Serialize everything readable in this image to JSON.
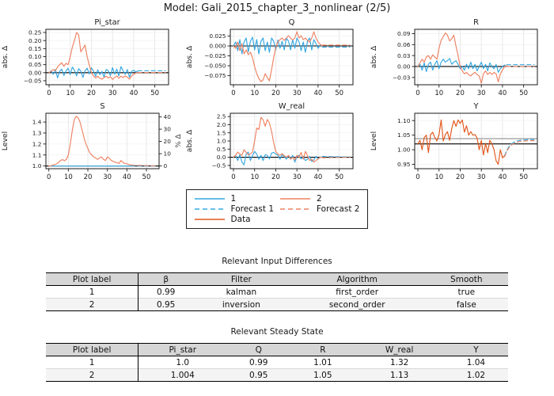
{
  "title": "Model: Gali_2015_chapter_3_nonlinear  (2/5)",
  "colors": {
    "series1": "#35a7e0",
    "series2": "#ee8262",
    "data": "#e2571c",
    "grid": "#e2e2e2",
    "grid_h": "#efefef",
    "spine": "#1a1a1a",
    "steady_black": "#000000",
    "steady_gray": "#8f8f8f"
  },
  "legend": {
    "items": [
      {
        "label": "1",
        "color": "series1",
        "dash": false
      },
      {
        "label": "2",
        "color": "series2",
        "dash": false
      },
      {
        "label": "Forecast 1",
        "color": "series1",
        "dash": true
      },
      {
        "label": "Forecast 2",
        "color": "series2",
        "dash": true
      },
      {
        "label": "Data",
        "color": "data",
        "dash": false
      }
    ]
  },
  "chart_data": [
    {
      "type": "line",
      "name": "Pi_star",
      "title": "Pi_star",
      "ylabel": "abs. Δ",
      "xlim": [
        -1.5,
        56.5
      ],
      "xticks": [
        0,
        10,
        20,
        30,
        40,
        50
      ],
      "ylim": [
        -0.075,
        0.27
      ],
      "yticks": [
        -0.05,
        0.0,
        0.05,
        0.1,
        0.15,
        0.2,
        0.25
      ],
      "ytick_labels": [
        "−0.05",
        "0.00",
        "0.05",
        "0.10",
        "0.15",
        "0.20",
        "0.25"
      ],
      "hlines": [
        {
          "y": 0.0,
          "color": "steady_black"
        }
      ],
      "series": [
        {
          "name": "1",
          "color": "series1",
          "dash": false,
          "x0": 0,
          "dx": 1,
          "y": [
            0,
            0.012,
            -0.01,
            0.02,
            -0.032,
            0.008,
            0.022,
            -0.018,
            0.01,
            0.028,
            -0.012,
            0.035,
            0.015,
            -0.02,
            0.025,
            0.01,
            -0.03,
            0.012,
            0.028,
            -0.008,
            0.03,
            0.01,
            -0.022,
            0.018,
            -0.012,
            0.008,
            -0.028,
            0.02,
            0.012,
            -0.018,
            0.032,
            -0.01,
            0.022,
            -0.02,
            0.038,
            0.012,
            -0.01,
            0.02,
            -0.028,
            0.008,
            0.015,
            0.005,
            0.01
          ]
        },
        {
          "name": "2",
          "color": "series2",
          "dash": false,
          "x0": 0,
          "dx": 1,
          "y": [
            0,
            0.008,
            0.02,
            0.012,
            0.035,
            0.05,
            0.062,
            0.04,
            0.058,
            0.05,
            0.1,
            0.16,
            0.2,
            0.25,
            0.235,
            0.13,
            0.15,
            0.172,
            0.1,
            0.048,
            0.002,
            -0.02,
            -0.032,
            -0.022,
            -0.035,
            -0.04,
            -0.03,
            -0.022,
            -0.033,
            -0.025,
            -0.042,
            -0.03,
            -0.02,
            -0.035,
            -0.022,
            -0.03,
            -0.02,
            -0.028,
            -0.04,
            -0.02,
            -0.01,
            -0.002,
            0.002
          ]
        },
        {
          "name": "Forecast 1",
          "color": "series1",
          "dash": true,
          "x0": 42,
          "dx": 13,
          "y": [
            0.012,
            0.012
          ]
        },
        {
          "name": "Forecast 2",
          "color": "series2",
          "dash": true,
          "x0": 42,
          "dx": 13,
          "y": [
            0.001,
            0.001
          ]
        }
      ]
    },
    {
      "type": "line",
      "name": "Q",
      "title": "Q",
      "ylabel": "abs. Δ",
      "xlim": [
        -1.5,
        56.5
      ],
      "xticks": [
        0,
        10,
        20,
        30,
        40,
        50
      ],
      "ylim": [
        -0.098,
        0.042
      ],
      "yticks": [
        -0.075,
        -0.05,
        -0.025,
        0.0,
        0.025
      ],
      "ytick_labels": [
        "−0.075",
        "−0.050",
        "−0.025",
        "0.000",
        "0.025"
      ],
      "hlines": [
        {
          "y": 0.0,
          "color": "steady_black"
        }
      ],
      "series": [
        {
          "name": "1",
          "color": "series1",
          "dash": false,
          "x0": 0,
          "dx": 1,
          "y": [
            0,
            0.01,
            -0.012,
            0.016,
            -0.02,
            0.01,
            0.02,
            -0.015,
            0.012,
            0.022,
            -0.01,
            0.016,
            -0.02,
            0.012,
            0.02,
            -0.012,
            0.01,
            -0.016,
            0.02,
            0.012,
            -0.01,
            0.015,
            -0.006,
            0.012,
            -0.01,
            0.02,
            0.012,
            -0.01,
            0.016,
            -0.006,
            0.02,
            0.01,
            -0.012,
            0.01,
            -0.016,
            0.012,
            0.02,
            -0.01,
            0.016,
            0.006,
            -0.006,
            0.002,
            0
          ]
        },
        {
          "name": "2",
          "color": "series2",
          "dash": false,
          "x0": 0,
          "dx": 1,
          "y": [
            0,
            -0.006,
            0.01,
            -0.012,
            0.006,
            -0.02,
            -0.01,
            -0.022,
            -0.016,
            -0.03,
            -0.052,
            -0.07,
            -0.082,
            -0.09,
            -0.086,
            -0.07,
            -0.08,
            -0.088,
            -0.06,
            -0.03,
            -0.004,
            0.01,
            0.016,
            0.02,
            0.014,
            0.02,
            0.026,
            0.02,
            0.015,
            0.02,
            0.036,
            0.02,
            0.026,
            0.016,
            0.02,
            0.014,
            0.01,
            0.02,
            0.036,
            0.02,
            0.01,
            0.004,
            0
          ]
        },
        {
          "name": "Forecast 1",
          "color": "series1",
          "dash": true,
          "x0": 42,
          "dx": 13,
          "y": [
            -0.003,
            -0.003
          ]
        },
        {
          "name": "Forecast 2",
          "color": "series2",
          "dash": true,
          "x0": 42,
          "dx": 13,
          "y": [
            0.002,
            0.002
          ]
        }
      ]
    },
    {
      "type": "line",
      "name": "R",
      "title": "R",
      "ylabel": "abs. Δ",
      "xlim": [
        -1.5,
        56.5
      ],
      "xticks": [
        0,
        10,
        20,
        30,
        40,
        50
      ],
      "ylim": [
        -0.05,
        0.102
      ],
      "yticks": [
        -0.03,
        0.0,
        0.03,
        0.06,
        0.09
      ],
      "ytick_labels": [
        "−0.03",
        "0.00",
        "0.03",
        "0.06",
        "0.09"
      ],
      "hlines": [
        {
          "y": 0.0,
          "color": "steady_black"
        }
      ],
      "series": [
        {
          "name": "1",
          "color": "series1",
          "dash": false,
          "x0": 0,
          "dx": 1,
          "y": [
            0,
            0.006,
            -0.01,
            0.01,
            -0.014,
            0.006,
            0.012,
            -0.01,
            0.006,
            0.016,
            -0.006,
            0.012,
            0.02,
            0.012,
            0.016,
            0.022,
            0.006,
            0.012,
            0.016,
            0.006,
            -0.006,
            0,
            -0.01,
            0.006,
            -0.006,
            0.012,
            -0.006,
            0.006,
            -0.012,
            0,
            0.012,
            -0.006,
            0.006,
            -0.012,
            0.01,
            0,
            -0.006,
            0.006,
            -0.016,
            -0.006,
            0,
            0.004,
            0
          ]
        },
        {
          "name": "2",
          "color": "series2",
          "dash": false,
          "x0": 0,
          "dx": 1,
          "y": [
            0,
            0.01,
            0.02,
            0.012,
            0.026,
            0.03,
            0.02,
            0.032,
            0.026,
            0.02,
            0.05,
            0.072,
            0.082,
            0.092,
            0.086,
            0.07,
            0.076,
            0.086,
            0.056,
            0.03,
            0,
            -0.012,
            -0.02,
            -0.016,
            -0.022,
            -0.026,
            -0.02,
            -0.016,
            -0.022,
            -0.026,
            -0.046,
            -0.02,
            -0.012,
            -0.022,
            -0.016,
            -0.022,
            -0.016,
            -0.02,
            -0.042,
            -0.02,
            -0.01,
            0,
            0.002
          ]
        },
        {
          "name": "Forecast 1",
          "color": "series1",
          "dash": true,
          "x0": 42,
          "dx": 13,
          "y": [
            0.005,
            0.005
          ]
        },
        {
          "name": "Forecast 2",
          "color": "series2",
          "dash": true,
          "x0": 42,
          "dx": 13,
          "y": [
            0.0,
            0.0
          ]
        }
      ]
    },
    {
      "type": "line",
      "name": "S",
      "title": "S",
      "ylabel": "Level",
      "xlim": [
        -1.5,
        56.5
      ],
      "xticks": [
        0,
        10,
        20,
        30,
        40,
        50
      ],
      "ylim": [
        0.975,
        1.48
      ],
      "yticks": [
        1.0,
        1.1,
        1.2,
        1.3,
        1.4
      ],
      "ytick_labels": [
        "1.0",
        "1.1",
        "1.2",
        "1.3",
        "1.4"
      ],
      "right_axis": {
        "label": "% Δ",
        "lim": [
          -2.24,
          43
        ],
        "ticks": [
          0,
          10,
          20,
          30,
          40
        ],
        "tick_labels": [
          "0",
          "10",
          "20",
          "30",
          "40"
        ]
      },
      "hlines": [
        {
          "y": 1.0,
          "color": "steady_black"
        }
      ],
      "series": [
        {
          "name": "1",
          "color": "series1",
          "dash": false,
          "x0": 0,
          "dx": 42,
          "y": [
            1.0,
            1.0
          ]
        },
        {
          "name": "2",
          "color": "series2",
          "dash": false,
          "x0": 0,
          "dx": 1,
          "y": [
            1,
            1.002,
            1.008,
            1.012,
            1.02,
            1.032,
            1.05,
            1.058,
            1.048,
            1.06,
            1.1,
            1.2,
            1.32,
            1.42,
            1.452,
            1.44,
            1.4,
            1.33,
            1.26,
            1.2,
            1.16,
            1.12,
            1.1,
            1.082,
            1.072,
            1.06,
            1.072,
            1.082,
            1.06,
            1.05,
            1.082,
            1.07,
            1.05,
            1.042,
            1.032,
            1.03,
            1.022,
            1.05,
            1.032,
            1.022,
            1.02,
            1.012,
            1.01
          ]
        },
        {
          "name": "Forecast 1",
          "color": "series1",
          "dash": true,
          "x0": 42,
          "dx": 13,
          "y": [
            1.0,
            1.0
          ]
        },
        {
          "name": "Forecast 2",
          "color": "series2",
          "dash": true,
          "x0": 42,
          "dx": 13,
          "y": [
            1.008,
            1.001
          ]
        }
      ]
    },
    {
      "type": "line",
      "name": "W_real",
      "title": "W_real",
      "ylabel": "abs. Δ",
      "xlim": [
        -1.5,
        56.5
      ],
      "xticks": [
        0,
        10,
        20,
        30,
        40,
        50
      ],
      "ylim": [
        -0.7,
        2.7
      ],
      "yticks": [
        -0.5,
        0.0,
        0.5,
        1.0,
        1.5,
        2.0,
        2.5
      ],
      "ytick_labels": [
        "−0.5",
        "0.0",
        "0.5",
        "1.0",
        "1.5",
        "2.0",
        "2.5"
      ],
      "hlines": [
        {
          "y": 0.0,
          "color": "steady_black"
        }
      ],
      "series": [
        {
          "name": "1",
          "color": "series1",
          "dash": false,
          "x0": 0,
          "dx": 1,
          "y": [
            0,
            0.12,
            -0.2,
            0.16,
            -0.3,
            -0.46,
            0.2,
            0.32,
            -0.2,
            0.12,
            0.36,
            0.2,
            -0.12,
            0.12,
            -0.2,
            0.16,
            0.12,
            -0.1,
            0.26,
            0.3,
            0.2,
            0.12,
            -0.12,
            0.16,
            0.06,
            -0.12,
            0.1,
            -0.06,
            0.12,
            -0.3,
            0.06,
            0.12,
            -0.1,
            0.06,
            -0.2,
            -0.12,
            0.06,
            -0.26,
            -0.16,
            0.06,
            -0.1,
            0.02,
            0
          ]
        },
        {
          "name": "2",
          "color": "series2",
          "dash": false,
          "x0": 0,
          "dx": 1,
          "y": [
            0,
            0.12,
            0.32,
            0.2,
            0.12,
            0.46,
            0.3,
            0.16,
            0.2,
            0.32,
            1.0,
            1.8,
            1.7,
            2.45,
            2.3,
            1.9,
            2.32,
            2.1,
            1.6,
            0.9,
            0.36,
            0.2,
            0.12,
            0.22,
            0.1,
            0,
            0.12,
            -0.12,
            0,
            -0.16,
            0.12,
            0,
            0.3,
            -0.12,
            0.36,
            0.1,
            -0.2,
            -0.12,
            -0.3,
            -0.2,
            -0.1,
            0,
            0
          ]
        },
        {
          "name": "Forecast 1",
          "color": "series1",
          "dash": true,
          "x0": 42,
          "dx": 13,
          "y": [
            0.05,
            0.02
          ]
        },
        {
          "name": "Forecast 2",
          "color": "series2",
          "dash": true,
          "x0": 42,
          "dx": 13,
          "y": [
            -0.03,
            0.0
          ]
        }
      ]
    },
    {
      "type": "line",
      "name": "Y",
      "title": "Y",
      "ylabel": "Level",
      "xlim": [
        -1.5,
        56.5
      ],
      "xticks": [
        0,
        10,
        20,
        30,
        40,
        50
      ],
      "ylim": [
        0.935,
        1.125
      ],
      "yticks": [
        0.95,
        1.0,
        1.05,
        1.1
      ],
      "ytick_labels": [
        "0.95",
        "1.00",
        "1.05",
        "1.10"
      ],
      "hlines": [
        {
          "y": 1.038,
          "color": "steady_gray"
        },
        {
          "y": 1.02,
          "color": "steady_black"
        }
      ],
      "series": [
        {
          "name": "Data",
          "color": "data",
          "dash": false,
          "x0": 0,
          "dx": 1,
          "y": [
            1.02,
            1.032,
            1.0,
            1.042,
            1.05,
            0.99,
            1.052,
            1.06,
            1.042,
            1.03,
            1.052,
            1.102,
            1.03,
            1.052,
            1.062,
            1.032,
            1.072,
            1.1,
            1.08,
            1.102,
            1.09,
            1.102,
            1.06,
            1.082,
            1.05,
            1.062,
            1.05,
            1.052,
            1.04,
            1.0,
            1.032,
            0.982,
            1.022,
            0.99,
            1.032,
            1.02,
            1.0,
            0.962,
            0.95,
            1.0,
            0.972,
            0.98
          ]
        },
        {
          "name": "Forecast 1",
          "color": "series1",
          "dash": true,
          "x0": 41,
          "dx": 1,
          "y": [
            0.98,
            0.998,
            1.01,
            1.018,
            1.024,
            1.028,
            1.03,
            1.032,
            1.033,
            1.034,
            1.034,
            1.035,
            1.035,
            1.035,
            1.035
          ]
        },
        {
          "name": "Forecast 2",
          "color": "series2",
          "dash": true,
          "x0": 41,
          "dx": 1,
          "y": [
            0.976,
            0.994,
            1.006,
            1.014,
            1.02,
            1.024,
            1.026,
            1.028,
            1.029,
            1.03,
            1.03,
            1.031,
            1.031,
            1.031,
            1.031
          ]
        }
      ]
    }
  ],
  "tables": [
    {
      "title": "Relevant Input Differences",
      "headers": [
        "Plot label",
        "β",
        "Filter",
        "Algorithm",
        "Smooth"
      ],
      "rows": [
        [
          "1",
          "0.99",
          "kalman",
          "first_order",
          "true"
        ],
        [
          "2",
          "0.95",
          "inversion",
          "second_order",
          "false"
        ]
      ]
    },
    {
      "title": "Relevant Steady State",
      "headers": [
        "Plot label",
        "Pi_star",
        "Q",
        "R",
        "W_real",
        "Y"
      ],
      "rows": [
        [
          "1",
          "1.0",
          "0.99",
          "1.01",
          "1.32",
          "1.04"
        ],
        [
          "2",
          "1.004",
          "0.95",
          "1.05",
          "1.13",
          "1.02"
        ]
      ]
    }
  ]
}
